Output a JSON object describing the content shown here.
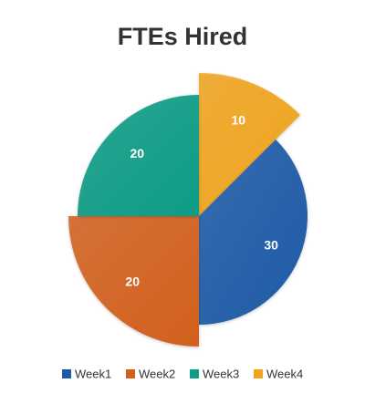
{
  "chart_data": {
    "type": "pie",
    "title": "FTEs Hired",
    "categories": [
      "Week1",
      "Week2",
      "Week3",
      "Week4"
    ],
    "values": [
      30,
      20,
      20,
      10
    ],
    "colors": [
      "#1d5aa6",
      "#d2601c",
      "#0f9c86",
      "#f0a41c"
    ],
    "legend": "bottom"
  }
}
